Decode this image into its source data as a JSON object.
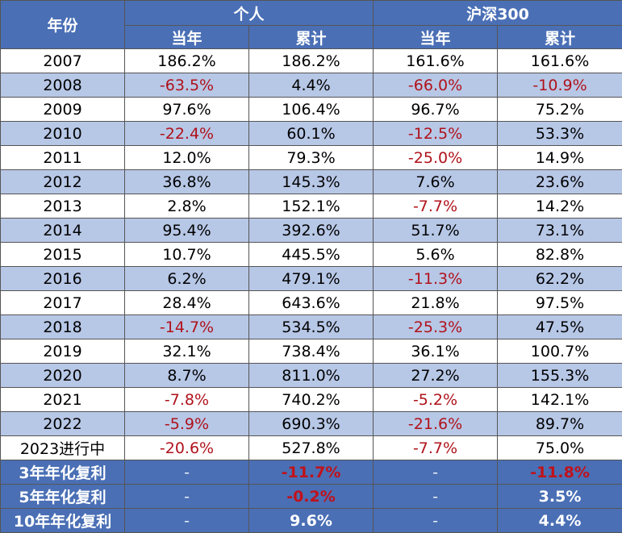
{
  "header": {
    "year_col": "年份",
    "group1": "个人",
    "group2": "沪深300",
    "sub_current": "当年",
    "sub_cumulative": "累计"
  },
  "rows": [
    {
      "year": "2007",
      "p_cur": "186.2%",
      "p_cum": "186.2%",
      "h_cur": "161.6%",
      "h_cum": "161.6%",
      "neg": [
        false,
        false,
        false,
        false
      ]
    },
    {
      "year": "2008",
      "p_cur": "-63.5%",
      "p_cum": "4.4%",
      "h_cur": "-66.0%",
      "h_cum": "-10.9%",
      "neg": [
        true,
        false,
        true,
        true
      ]
    },
    {
      "year": "2009",
      "p_cur": "97.6%",
      "p_cum": "106.4%",
      "h_cur": "96.7%",
      "h_cum": "75.2%",
      "neg": [
        false,
        false,
        false,
        false
      ]
    },
    {
      "year": "2010",
      "p_cur": "-22.4%",
      "p_cum": "60.1%",
      "h_cur": "-12.5%",
      "h_cum": "53.3%",
      "neg": [
        true,
        false,
        true,
        false
      ]
    },
    {
      "year": "2011",
      "p_cur": "12.0%",
      "p_cum": "79.3%",
      "h_cur": "-25.0%",
      "h_cum": "14.9%",
      "neg": [
        false,
        false,
        true,
        false
      ]
    },
    {
      "year": "2012",
      "p_cur": "36.8%",
      "p_cum": "145.3%",
      "h_cur": "7.6%",
      "h_cum": "23.6%",
      "neg": [
        false,
        false,
        false,
        false
      ]
    },
    {
      "year": "2013",
      "p_cur": "2.8%",
      "p_cum": "152.1%",
      "h_cur": "-7.7%",
      "h_cum": "14.2%",
      "neg": [
        false,
        false,
        true,
        false
      ]
    },
    {
      "year": "2014",
      "p_cur": "95.4%",
      "p_cum": "392.6%",
      "h_cur": "51.7%",
      "h_cum": "73.1%",
      "neg": [
        false,
        false,
        false,
        false
      ]
    },
    {
      "year": "2015",
      "p_cur": "10.7%",
      "p_cum": "445.5%",
      "h_cur": "5.6%",
      "h_cum": "82.8%",
      "neg": [
        false,
        false,
        false,
        false
      ]
    },
    {
      "year": "2016",
      "p_cur": "6.2%",
      "p_cum": "479.1%",
      "h_cur": "-11.3%",
      "h_cum": "62.2%",
      "neg": [
        false,
        false,
        true,
        false
      ]
    },
    {
      "year": "2017",
      "p_cur": "28.4%",
      "p_cum": "643.6%",
      "h_cur": "21.8%",
      "h_cum": "97.5%",
      "neg": [
        false,
        false,
        false,
        false
      ]
    },
    {
      "year": "2018",
      "p_cur": "-14.7%",
      "p_cum": "534.5%",
      "h_cur": "-25.3%",
      "h_cum": "47.5%",
      "neg": [
        true,
        false,
        true,
        false
      ]
    },
    {
      "year": "2019",
      "p_cur": "32.1%",
      "p_cum": "738.4%",
      "h_cur": "36.1%",
      "h_cum": "100.7%",
      "neg": [
        false,
        false,
        false,
        false
      ]
    },
    {
      "year": "2020",
      "p_cur": "8.7%",
      "p_cum": "811.0%",
      "h_cur": "27.2%",
      "h_cum": "155.3%",
      "neg": [
        false,
        false,
        false,
        false
      ]
    },
    {
      "year": "2021",
      "p_cur": "-7.8%",
      "p_cum": "740.2%",
      "h_cur": "-5.2%",
      "h_cum": "142.1%",
      "neg": [
        true,
        false,
        true,
        false
      ]
    },
    {
      "year": "2022",
      "p_cur": "-5.9%",
      "p_cum": "690.3%",
      "h_cur": "-21.6%",
      "h_cum": "89.7%",
      "neg": [
        true,
        false,
        true,
        false
      ]
    },
    {
      "year": "2023进行中",
      "p_cur": "-20.6%",
      "p_cum": "527.8%",
      "h_cur": "-7.7%",
      "h_cum": "75.0%",
      "neg": [
        true,
        false,
        true,
        false
      ]
    }
  ],
  "summary": [
    {
      "label": "3年年化复利",
      "p_cur": "-",
      "p_cum": "-11.7%",
      "h_cur": "-",
      "h_cum": "-11.8%",
      "red": [
        false,
        true,
        false,
        true
      ]
    },
    {
      "label": "5年年化复利",
      "p_cur": "-",
      "p_cum": "-0.2%",
      "h_cur": "-",
      "h_cum": "3.5%",
      "red": [
        false,
        true,
        false,
        false
      ]
    },
    {
      "label": "10年年化复利",
      "p_cur": "-",
      "p_cum": "9.6%",
      "h_cur": "-",
      "h_cum": "4.4%",
      "red": [
        false,
        false,
        false,
        false
      ]
    }
  ],
  "colors": {
    "header_bg": "#4a6fb5",
    "stripe_bg": "#b7c7e6",
    "negative_text": "#b0121b"
  }
}
